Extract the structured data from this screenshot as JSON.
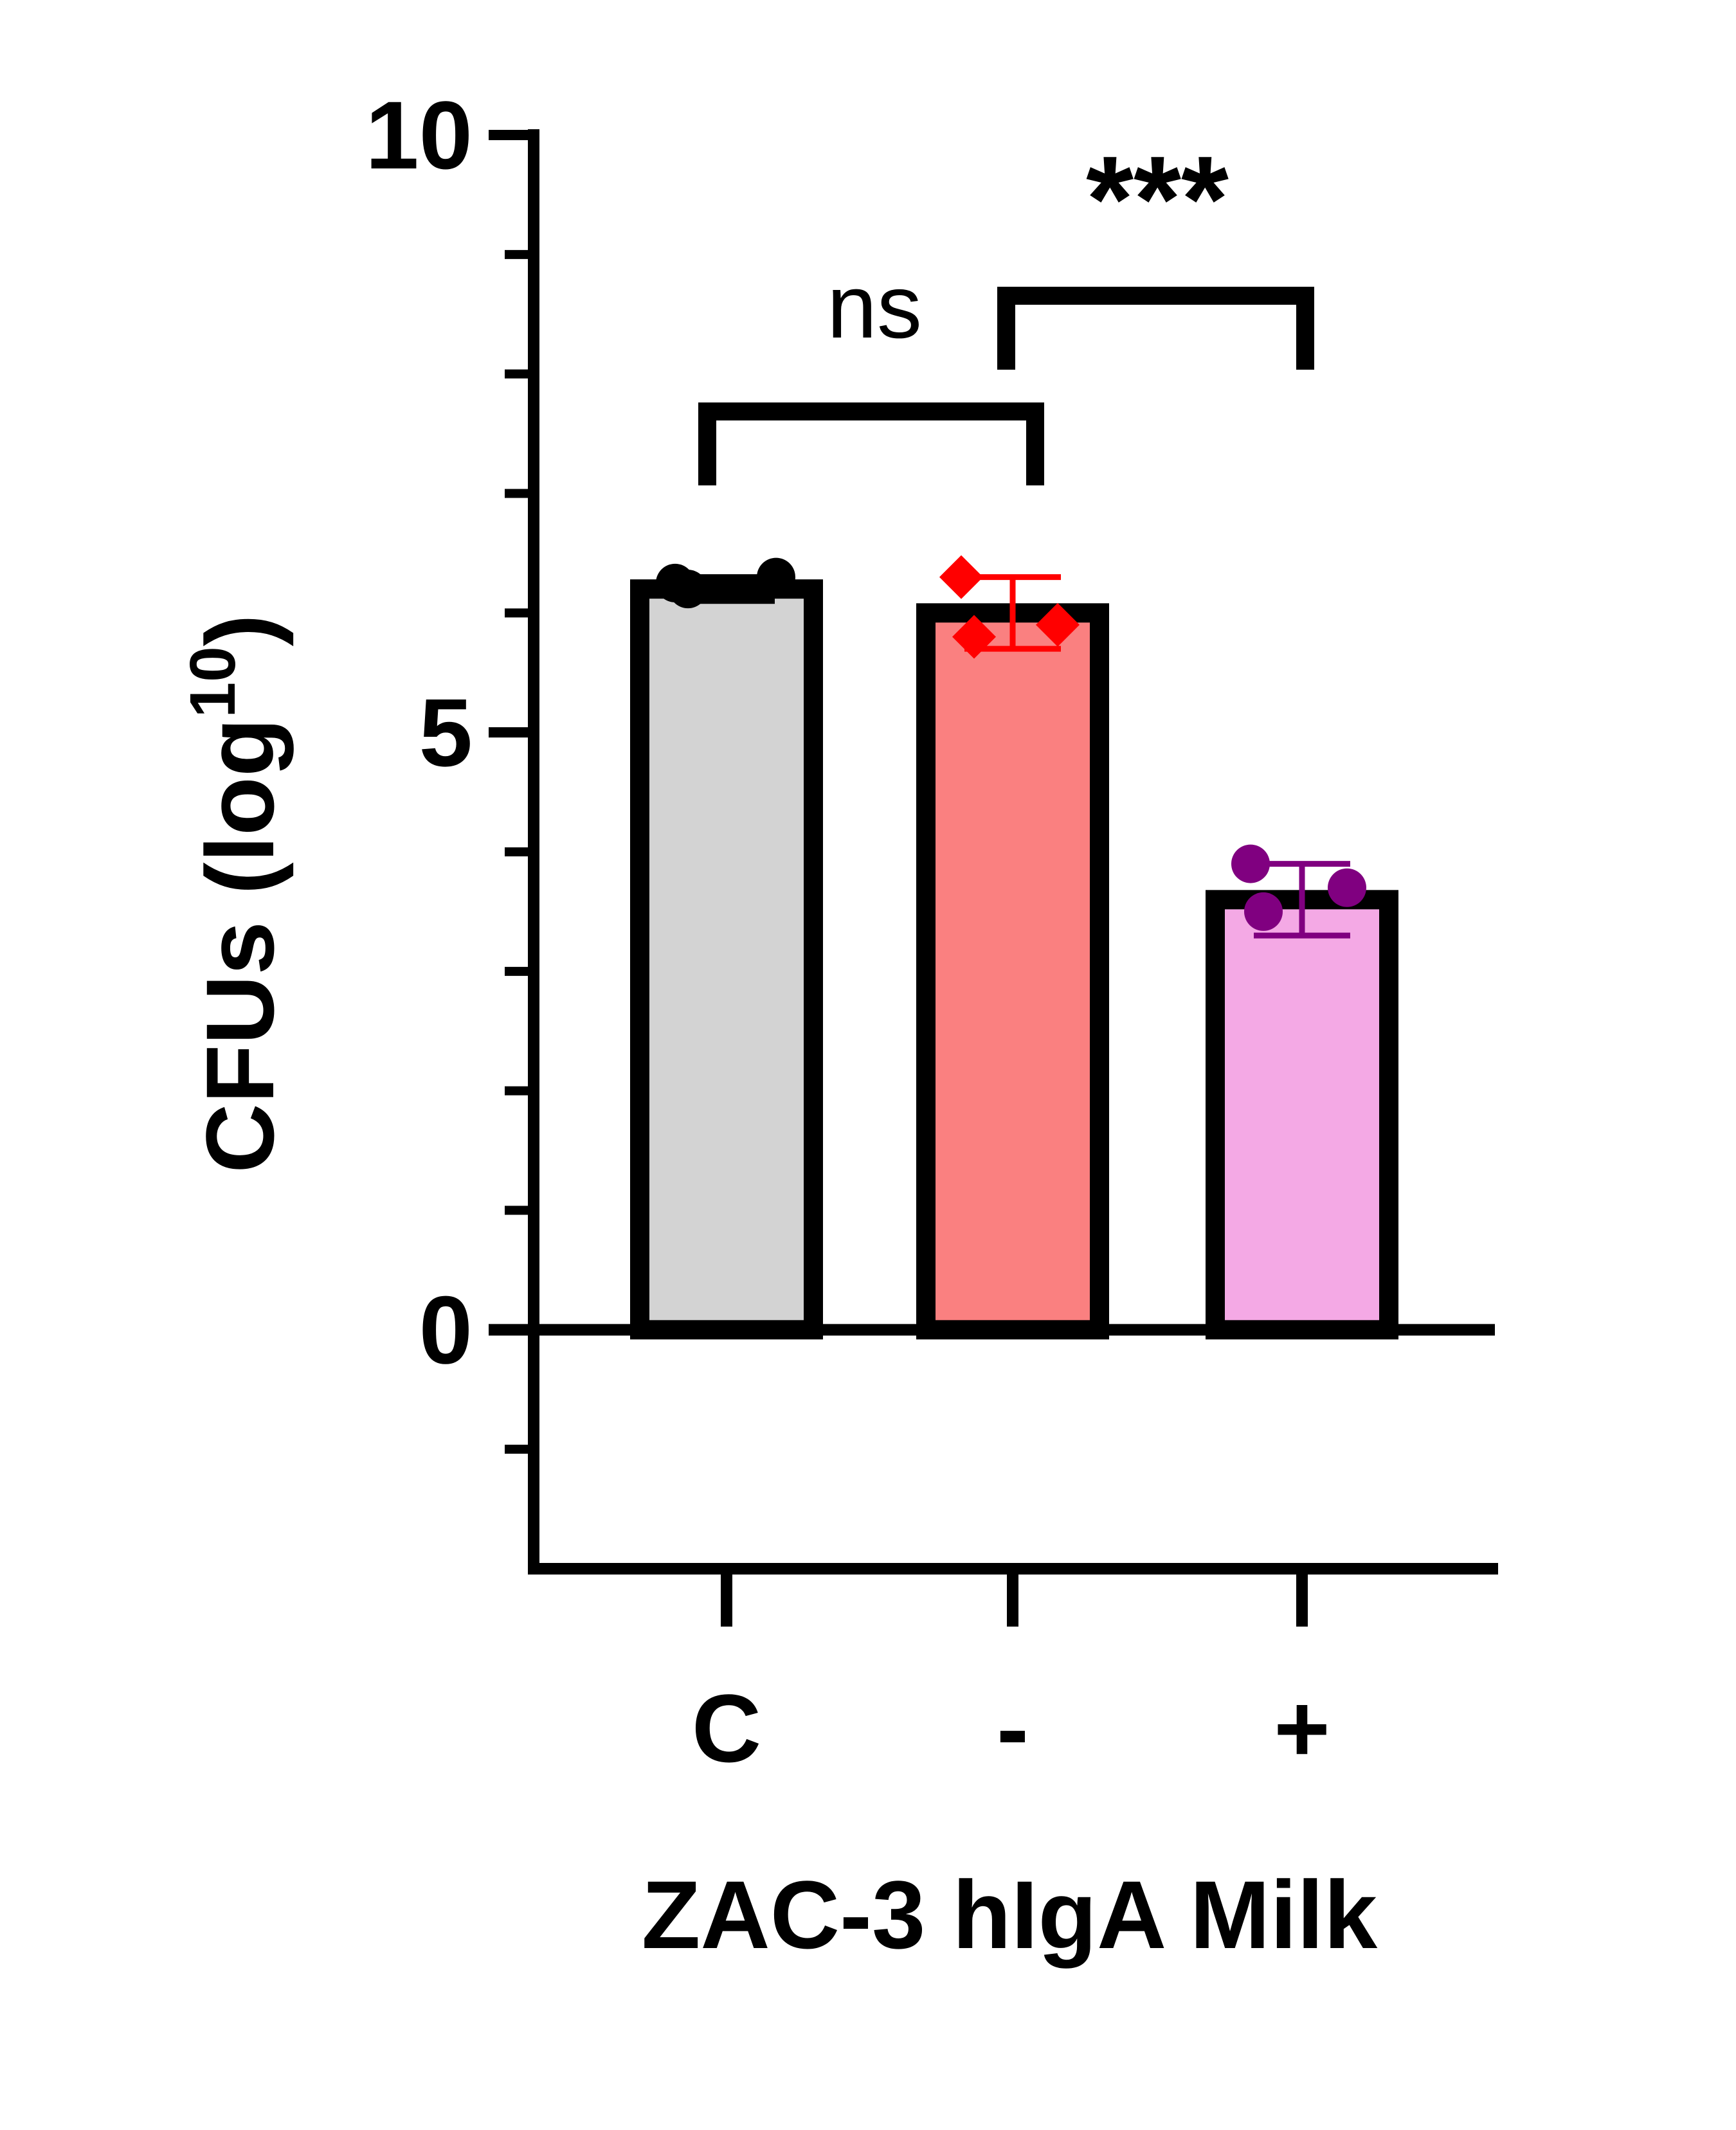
{
  "chart_data": {
    "type": "bar",
    "categories": [
      "C",
      "-",
      "+"
    ],
    "values": [
      6.2,
      6.0,
      3.6
    ],
    "error": [
      0.1,
      0.3,
      0.3
    ],
    "points": [
      [
        6.25,
        6.3,
        6.2
      ],
      [
        6.3,
        5.9,
        5.8
      ],
      [
        3.9,
        3.7,
        3.5
      ]
    ],
    "colors": {
      "fills": [
        "#d3d3d3",
        "#fa8080",
        "#f4a9e5"
      ],
      "markers": [
        "#000000",
        "#ff0000",
        "#800080"
      ],
      "marker_shapes": [
        "circle",
        "diamond",
        "circle"
      ]
    },
    "ylabel_main": "CFUs (log",
    "ylabel_sup": "10",
    "ylabel_close": ")",
    "xlabel": "ZAC-3 hIgA Milk",
    "ylim": [
      -2,
      10
    ],
    "yticks": [
      0,
      5,
      10
    ],
    "significance": [
      {
        "from": 0,
        "to": 1,
        "label": "ns"
      },
      {
        "from": 1,
        "to": 2,
        "label": "***"
      }
    ]
  }
}
